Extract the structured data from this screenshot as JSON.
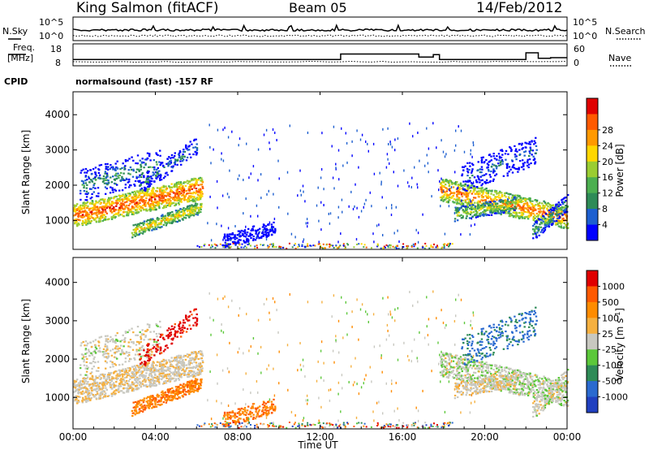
{
  "header": {
    "station": "King Salmon (fitACF)",
    "beam": "Beam 05",
    "date": "14/Feb/2012"
  },
  "strip_labels": {
    "nsky": "N.Sky",
    "nsearch": "N.Search",
    "freq_line1": "Freq.",
    "freq_line2": "[MHz]",
    "nave": "Nave",
    "cpid": "CPID",
    "cpid_value": "normalsound (fast) -157 RF"
  },
  "colors": {
    "power_scale": [
      "#0000ff",
      "#1d5fd0",
      "#2e8b57",
      "#4caf50",
      "#9acd32",
      "#ffd700",
      "#ff9900",
      "#ff5a00",
      "#e00000"
    ],
    "velocity_scale": [
      "#2040c0",
      "#2a6ad0",
      "#2e8b57",
      "#5cc83a",
      "#c8c8c0",
      "#f5b040",
      "#ff8c00",
      "#ff5a00",
      "#e00000"
    ]
  },
  "chart_data": [
    {
      "type": "line",
      "title": "N.Sky / N.Search",
      "x": [
        "00:00",
        "04:00",
        "08:00",
        "12:00",
        "16:00",
        "20:00",
        "00:00"
      ],
      "left_ticks": [
        "10^5",
        "10^0"
      ],
      "right_ticks": [
        "10^5",
        "10^0"
      ],
      "series": [
        {
          "name": "N.Sky",
          "style": "solid"
        },
        {
          "name": "N.Search",
          "style": "dotted"
        }
      ]
    },
    {
      "type": "line",
      "title": "Freq. [MHz] / Nave",
      "x": [
        "00:00",
        "04:00",
        "08:00",
        "12:00",
        "16:00",
        "20:00",
        "00:00"
      ],
      "left_ticks": [
        "18",
        "8"
      ],
      "right_ticks": [
        "60",
        "0"
      ],
      "series": [
        {
          "name": "Freq.",
          "style": "solid",
          "points": [
            [
              0,
              10.5
            ],
            [
              13,
              10.5
            ],
            [
              13,
              15
            ],
            [
              16.8,
              15
            ],
            [
              16.8,
              12.5
            ],
            [
              17.5,
              12.5
            ],
            [
              17.5,
              14.5
            ],
            [
              17.8,
              14.5
            ],
            [
              17.8,
              10.5
            ],
            [
              22,
              10.5
            ],
            [
              22,
              16
            ],
            [
              22.6,
              16
            ],
            [
              22.6,
              11.5
            ],
            [
              23.2,
              11.5
            ],
            [
              23.2,
              12
            ],
            [
              24,
              12
            ]
          ]
        },
        {
          "name": "Nave",
          "style": "dotted"
        }
      ]
    },
    {
      "type": "heatmap",
      "title": "Power",
      "ylabel": "Slant Range [km]",
      "y_ticks": [
        "1000",
        "2000",
        "3000",
        "4000"
      ],
      "ylim": [
        180,
        4650
      ],
      "xlim_hours": [
        0,
        24
      ],
      "colorbar_label": "Power [dB]",
      "colorbar_ticks": [
        "4",
        "8",
        "12",
        "16",
        "20",
        "24",
        "28"
      ]
    },
    {
      "type": "heatmap",
      "title": "Velocity",
      "ylabel": "Slant Range [km]",
      "xlabel": "Time UT",
      "x_ticks": [
        "00:00",
        "04:00",
        "08:00",
        "12:00",
        "16:00",
        "20:00",
        "00:00"
      ],
      "y_ticks": [
        "1000",
        "2000",
        "3000",
        "4000"
      ],
      "ylim": [
        180,
        4650
      ],
      "xlim_hours": [
        0,
        24
      ],
      "colorbar_label": "Velocity [m s",
      "colorbar_label_superscript": "-1",
      "colorbar_label_suffix": "]",
      "colorbar_ticks": [
        "1000",
        "500",
        "100",
        "25",
        "-25",
        "-100",
        "-500",
        "-1000"
      ]
    }
  ]
}
